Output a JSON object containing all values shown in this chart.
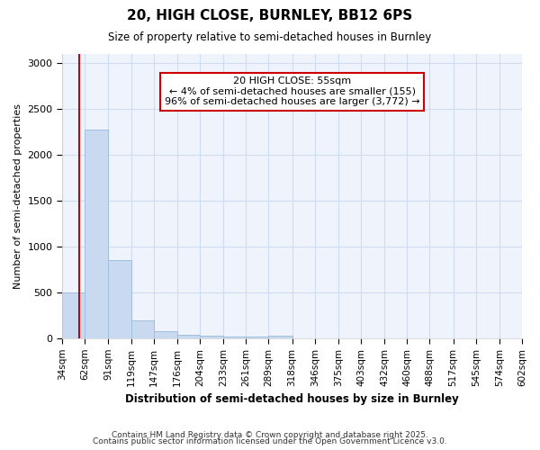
{
  "title1": "20, HIGH CLOSE, BURNLEY, BB12 6PS",
  "title2": "Size of property relative to semi-detached houses in Burnley",
  "xlabel": "Distribution of semi-detached houses by size in Burnley",
  "ylabel": "Number of semi-detached properties",
  "bar_values": [
    500,
    2280,
    850,
    195,
    80,
    45,
    35,
    25,
    25,
    35,
    0,
    0,
    0,
    0,
    0,
    0,
    0,
    0,
    0,
    0
  ],
  "bin_edges": [
    34,
    62,
    91,
    119,
    147,
    176,
    204,
    233,
    261,
    289,
    318,
    346,
    375,
    403,
    432,
    460,
    488,
    517,
    545,
    574,
    602
  ],
  "bar_color": "#c8d9f0",
  "bar_edge_color": "#a0bede",
  "property_size": 55,
  "red_line_color": "#cc0000",
  "annotation_text": "20 HIGH CLOSE: 55sqm\n← 4% of semi-detached houses are smaller (155)\n96% of semi-detached houses are larger (3,772) →",
  "annotation_box_color": "#ffffff",
  "annotation_box_edge_color": "#cc0000",
  "ylim": [
    0,
    3100
  ],
  "yticks": [
    0,
    500,
    1000,
    1500,
    2000,
    2500,
    3000
  ],
  "footer1": "Contains HM Land Registry data © Crown copyright and database right 2025.",
  "footer2": "Contains public sector information licensed under the Open Government Licence v3.0.",
  "bg_color": "#ffffff",
  "plot_bg_color": "#eef3fc",
  "grid_color": "#d0ddf0"
}
